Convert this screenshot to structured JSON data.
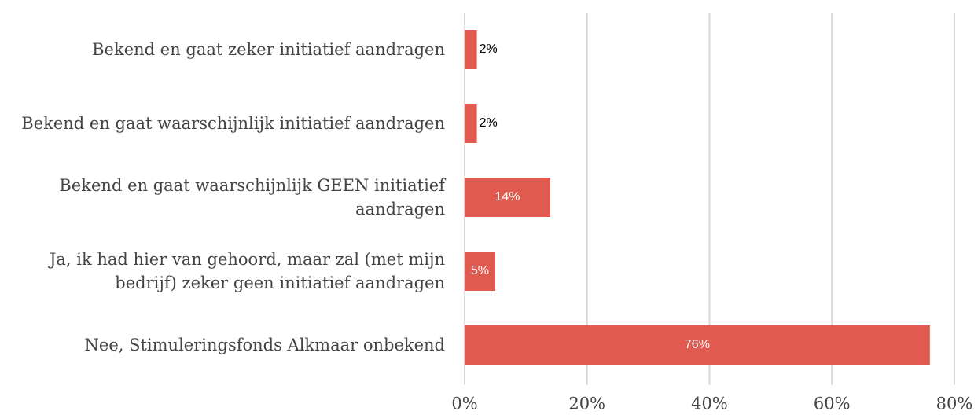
{
  "chart_data": {
    "type": "bar",
    "orientation": "horizontal",
    "categories": [
      "Bekend en gaat zeker initiatief aandragen",
      "Bekend en gaat waarschijnlijk initiatief aandragen",
      "Bekend en gaat waarschijnlijk GEEN initiatief aandragen",
      "Ja, ik had hier van gehoord, maar zal (met mijn bedrijf) zeker geen initiatief aandragen",
      "Nee, Stimuleringsfonds Alkmaar onbekend"
    ],
    "values": [
      2,
      2,
      14,
      5,
      76
    ],
    "value_labels": [
      "2%",
      "2%",
      "14%",
      "5%",
      "76%"
    ],
    "color": "#e05a4f",
    "xlim": [
      0,
      80
    ],
    "xticks": [
      {
        "value": 0,
        "label": "0%"
      },
      {
        "value": 20,
        "label": "20%"
      },
      {
        "value": 40,
        "label": "40%"
      },
      {
        "value": 60,
        "label": "60%"
      },
      {
        "value": 80,
        "label": "80%"
      }
    ],
    "grid": true
  }
}
